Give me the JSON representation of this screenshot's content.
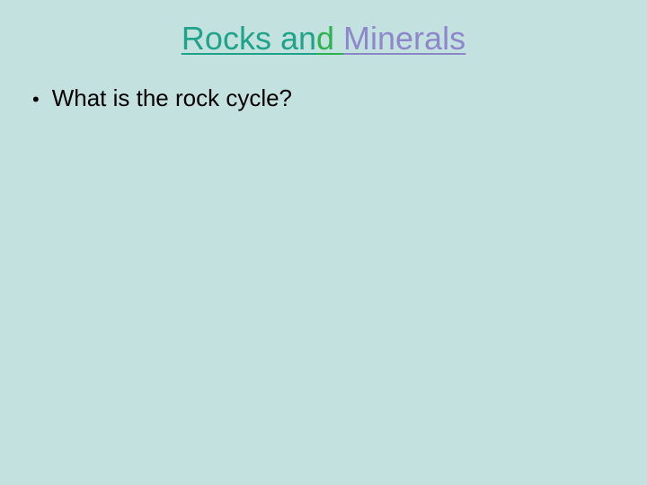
{
  "slide": {
    "background_color": "#c3e1de",
    "title": {
      "seg1_text": "Rocks an",
      "seg2_text": "d ",
      "seg3_text": "Minerals",
      "seg1_color": "#1fa38a",
      "seg2_color": "#30b14f",
      "seg3_color": "#8e87cb",
      "fontsize": 36,
      "underline": true
    },
    "bullets": [
      {
        "text": "What is the rock cycle?",
        "color": "#000000",
        "fontsize": 26
      }
    ],
    "bullet_marker": "•",
    "bullet_marker_color": "#000000"
  }
}
